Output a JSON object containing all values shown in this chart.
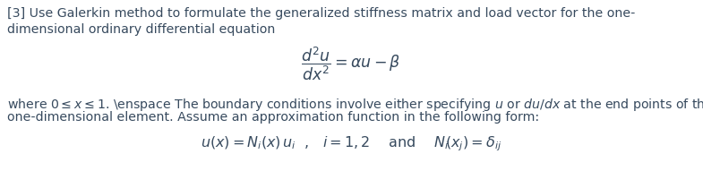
{
  "bg_color": "#ffffff",
  "text_color": "#374a5e",
  "fig_width": 7.85,
  "fig_height": 1.91,
  "dpi": 100,
  "line1": "[3] Use Galerkin method to formulate the generalized stiffness matrix and load vector for the one-",
  "line2": "dimensional ordinary differential equation",
  "equation_num": "$\\dfrac{d^2u}{dx^2}$",
  "equation_rhs": "$= \\alpha u - \\beta$",
  "line3": "where $0\\leq x\\leq1$. \\enspace The boundary conditions involve either specifying $u$ or $du/dx$ at the end points of the",
  "line4": "one-dimensional element. Assume an approximation function in the following form:",
  "bottom_eq": "$u(x) = N_i(x)\\, u_i\\ $ ,  $\\ i = 1,2\\quad$ and $\\quad N_i\\!\\left(x_j\\right) = \\delta_{ij}$",
  "font_size_body": 10.2,
  "font_size_eq": 12.5,
  "font_size_bottom": 11.5
}
